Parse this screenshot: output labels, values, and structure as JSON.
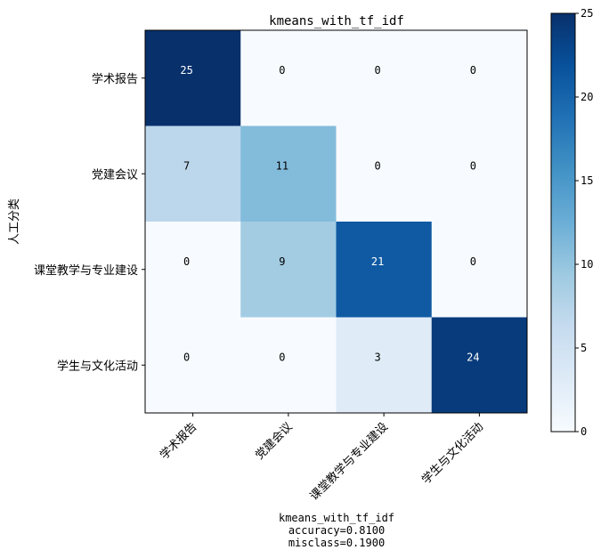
{
  "chart_data": {
    "type": "heatmap",
    "title": "kmeans_with_tf_idf",
    "ylabel": "人工分类",
    "xlabel_lines": [
      "kmeans_with_tf_idf",
      "accuracy=0.8100",
      "misclass=0.1900"
    ],
    "row_labels": [
      "学术报告",
      "党建会议",
      "课堂教学与专业建设",
      "学生与文化活动"
    ],
    "col_labels": [
      "学术报告",
      "党建会议",
      "课堂教学与专业建设",
      "学生与文化活动"
    ],
    "matrix": [
      [
        25,
        0,
        0,
        0
      ],
      [
        7,
        11,
        0,
        0
      ],
      [
        0,
        9,
        21,
        0
      ],
      [
        0,
        0,
        3,
        24
      ]
    ],
    "colormap": "Blues",
    "vmin": 0,
    "vmax": 25,
    "colorbar_ticks": [
      0,
      5,
      10,
      15,
      20,
      25
    ],
    "xtick_rotation": 45
  }
}
